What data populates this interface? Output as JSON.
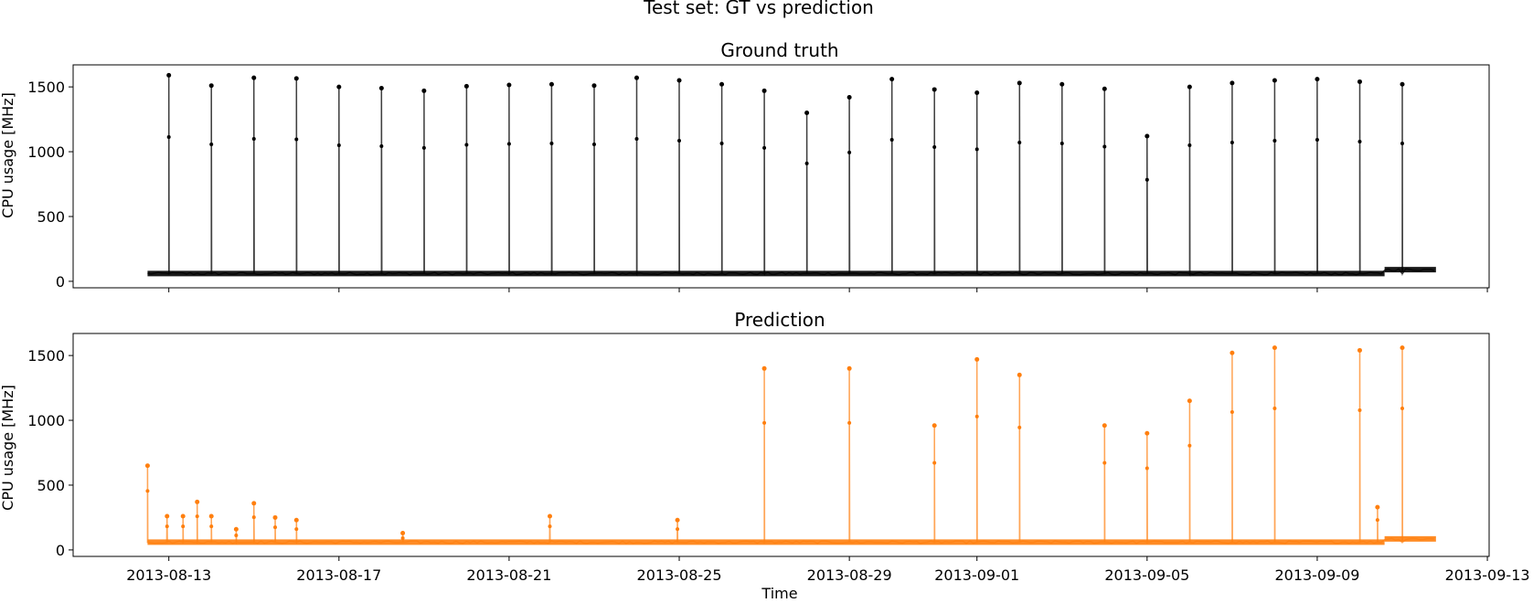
{
  "figure": {
    "suptitle": "Test set: GT vs prediction",
    "xlabel": "Time"
  },
  "chart_data": [
    {
      "type": "line",
      "title": "Ground truth",
      "ylabel": "CPU usage [MHz]",
      "ylim": [
        -50,
        1670
      ],
      "xlim": [
        "2013-08-10T18:00",
        "2013-09-13T01:00"
      ],
      "grid": false,
      "color": "#000000",
      "x_ticks": [
        "2013-08-13",
        "2013-08-17",
        "2013-08-21",
        "2013-08-25",
        "2013-08-29",
        "2013-09-01",
        "2013-09-05",
        "2013-09-09",
        "2013-09-13"
      ],
      "y_ticks": [
        0,
        500,
        1000,
        1500
      ],
      "series_range": [
        "2013-08-12T12:00",
        "2013-09-11T19:00"
      ],
      "baseline": 60,
      "baseline_late": 90,
      "baseline_late_from": "2013-09-10T14:00",
      "spikes": [
        {
          "x": "2013-08-13T00:00",
          "y": 1590
        },
        {
          "x": "2013-08-14T00:00",
          "y": 1510
        },
        {
          "x": "2013-08-15T00:00",
          "y": 1570
        },
        {
          "x": "2013-08-16T00:00",
          "y": 1565
        },
        {
          "x": "2013-08-17T00:00",
          "y": 1500
        },
        {
          "x": "2013-08-18T00:00",
          "y": 1490
        },
        {
          "x": "2013-08-19T00:00",
          "y": 1470
        },
        {
          "x": "2013-08-20T00:00",
          "y": 1505
        },
        {
          "x": "2013-08-21T00:00",
          "y": 1515
        },
        {
          "x": "2013-08-22T00:00",
          "y": 1520
        },
        {
          "x": "2013-08-23T00:00",
          "y": 1510
        },
        {
          "x": "2013-08-24T00:00",
          "y": 1570
        },
        {
          "x": "2013-08-25T00:00",
          "y": 1550
        },
        {
          "x": "2013-08-26T00:00",
          "y": 1520
        },
        {
          "x": "2013-08-27T00:00",
          "y": 1470
        },
        {
          "x": "2013-08-28T00:00",
          "y": 1300
        },
        {
          "x": "2013-08-29T00:00",
          "y": 1420
        },
        {
          "x": "2013-08-30T00:00",
          "y": 1560
        },
        {
          "x": "2013-08-31T00:00",
          "y": 1480
        },
        {
          "x": "2013-09-01T00:00",
          "y": 1455
        },
        {
          "x": "2013-09-02T00:00",
          "y": 1530
        },
        {
          "x": "2013-09-03T00:00",
          "y": 1520
        },
        {
          "x": "2013-09-04T00:00",
          "y": 1485
        },
        {
          "x": "2013-09-05T00:00",
          "y": 1120
        },
        {
          "x": "2013-09-06T00:00",
          "y": 1500
        },
        {
          "x": "2013-09-07T00:00",
          "y": 1530
        },
        {
          "x": "2013-09-08T00:00",
          "y": 1550
        },
        {
          "x": "2013-09-09T00:00",
          "y": 1560
        },
        {
          "x": "2013-09-10T00:00",
          "y": 1540
        },
        {
          "x": "2013-09-11T00:00",
          "y": 1520
        }
      ]
    },
    {
      "type": "line",
      "title": "Prediction",
      "ylabel": "CPU usage [MHz]",
      "ylim": [
        -50,
        1670
      ],
      "xlim": [
        "2013-08-10T18:00",
        "2013-09-13T01:00"
      ],
      "grid": false,
      "color": "#ff7f0e",
      "x_ticks": [
        "2013-08-13",
        "2013-08-17",
        "2013-08-21",
        "2013-08-25",
        "2013-08-29",
        "2013-09-01",
        "2013-09-05",
        "2013-09-09",
        "2013-09-13"
      ],
      "y_ticks": [
        0,
        500,
        1000,
        1500
      ],
      "series_range": [
        "2013-08-12T12:00",
        "2013-09-11T19:00"
      ],
      "baseline": 60,
      "baseline_late": 85,
      "baseline_late_from": "2013-09-10T14:00",
      "spikes": [
        {
          "x": "2013-08-12T12:00",
          "y": 650
        },
        {
          "x": "2013-08-12T23:00",
          "y": 260
        },
        {
          "x": "2013-08-13T08:00",
          "y": 260
        },
        {
          "x": "2013-08-13T16:00",
          "y": 370
        },
        {
          "x": "2013-08-14T00:00",
          "y": 260
        },
        {
          "x": "2013-08-14T14:00",
          "y": 160
        },
        {
          "x": "2013-08-15T00:00",
          "y": 360
        },
        {
          "x": "2013-08-15T12:00",
          "y": 250
        },
        {
          "x": "2013-08-16T00:00",
          "y": 230
        },
        {
          "x": "2013-08-18T12:00",
          "y": 130
        },
        {
          "x": "2013-08-21T23:00",
          "y": 260
        },
        {
          "x": "2013-08-24T23:00",
          "y": 230
        },
        {
          "x": "2013-08-27T00:00",
          "y": 1400
        },
        {
          "x": "2013-08-29T00:00",
          "y": 1400
        },
        {
          "x": "2013-08-31T00:00",
          "y": 960
        },
        {
          "x": "2013-09-01T00:00",
          "y": 1470
        },
        {
          "x": "2013-09-02T00:00",
          "y": 1350
        },
        {
          "x": "2013-09-04T00:00",
          "y": 960
        },
        {
          "x": "2013-09-05T00:00",
          "y": 900
        },
        {
          "x": "2013-09-06T00:00",
          "y": 1150
        },
        {
          "x": "2013-09-07T00:00",
          "y": 1520
        },
        {
          "x": "2013-09-08T00:00",
          "y": 1560
        },
        {
          "x": "2013-09-10T00:00",
          "y": 1540
        },
        {
          "x": "2013-09-10T10:00",
          "y": 330
        },
        {
          "x": "2013-09-11T00:00",
          "y": 1560
        }
      ]
    }
  ]
}
